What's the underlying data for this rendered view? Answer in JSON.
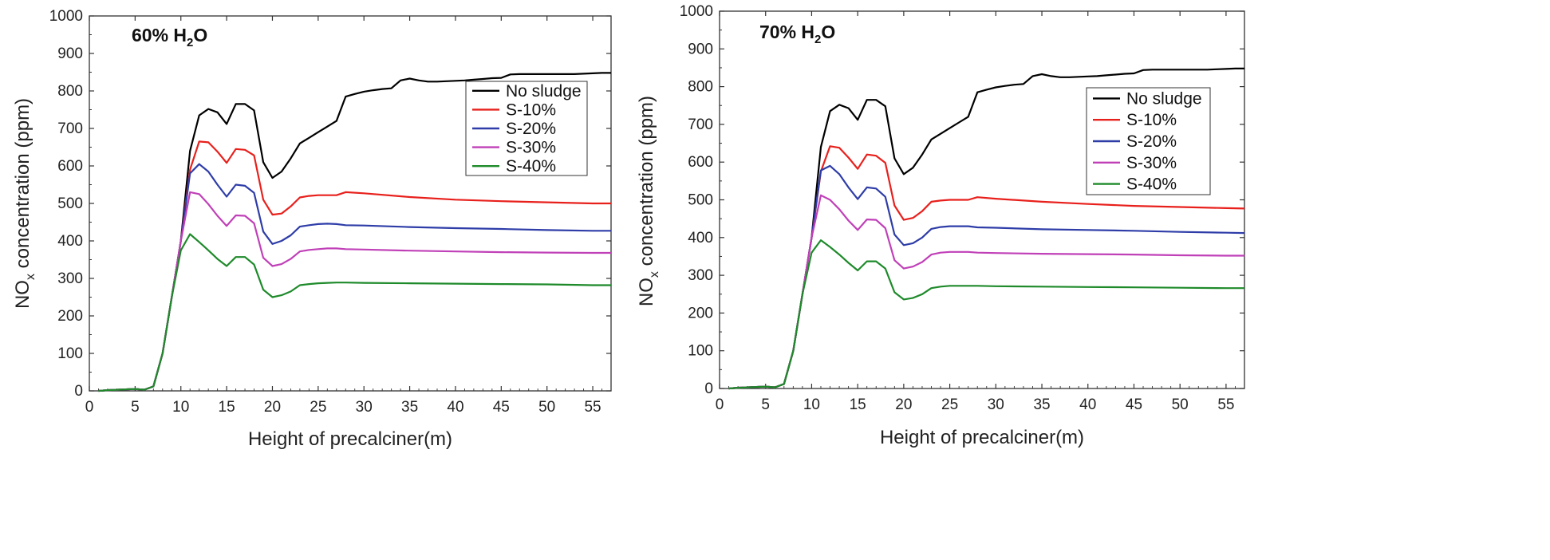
{
  "chart_data": [
    {
      "type": "line",
      "annotation": {
        "prefix": "60% H",
        "sub": "2",
        "suffix": "O"
      },
      "xlabel": "Height of precalciner(m)",
      "ylabel": {
        "prefix": "NO",
        "sub": "x",
        "suffix": " concentration (ppm)"
      },
      "xlim": [
        0,
        57
      ],
      "ylim": [
        0,
        1000
      ],
      "xticks": [
        0,
        5,
        10,
        15,
        20,
        25,
        30,
        35,
        40,
        45,
        50,
        55
      ],
      "yticks": [
        0,
        100,
        200,
        300,
        400,
        500,
        600,
        700,
        800,
        900,
        1000
      ],
      "legend_position": "top-right",
      "series": [
        {
          "name": "No sludge",
          "color": "#000000",
          "x": [
            1,
            2,
            3,
            4,
            5,
            6,
            7,
            8,
            9,
            10,
            11,
            12,
            13,
            14,
            15,
            16,
            17,
            18,
            19,
            20,
            21,
            22,
            23,
            24,
            25,
            26,
            27,
            28,
            29,
            30,
            31,
            32,
            33,
            34,
            35,
            36,
            37,
            38,
            39,
            40,
            41,
            42,
            43,
            44,
            45,
            46,
            47,
            48,
            49,
            50,
            51,
            52,
            53,
            54,
            55,
            56,
            57
          ],
          "y": [
            0,
            2,
            3,
            4,
            5,
            3,
            12,
            100,
            250,
            400,
            640,
            735,
            752,
            743,
            712,
            765,
            765,
            748,
            610,
            568,
            585,
            620,
            660,
            675,
            690,
            705,
            720,
            785,
            792,
            798,
            802,
            805,
            807,
            828,
            833,
            828,
            825,
            825,
            826,
            827,
            828,
            830,
            832,
            834,
            835,
            844,
            845,
            845,
            845,
            845,
            845,
            845,
            845,
            846,
            847,
            848,
            848
          ]
        },
        {
          "name": "S-10%",
          "color": "#e8201c",
          "x": [
            1,
            2,
            3,
            4,
            5,
            6,
            7,
            8,
            9,
            10,
            11,
            12,
            13,
            14,
            15,
            16,
            17,
            18,
            19,
            20,
            21,
            22,
            23,
            24,
            25,
            26,
            27,
            28,
            30,
            35,
            40,
            45,
            50,
            55,
            57
          ],
          "y": [
            0,
            2,
            3,
            4,
            5,
            3,
            12,
            100,
            250,
            400,
            590,
            665,
            663,
            638,
            608,
            645,
            643,
            628,
            510,
            470,
            473,
            492,
            516,
            520,
            522,
            522,
            522,
            530,
            527,
            517,
            510,
            506,
            503,
            500,
            500
          ]
        },
        {
          "name": "S-20%",
          "color": "#2e3da8",
          "x": [
            1,
            2,
            3,
            4,
            5,
            6,
            7,
            8,
            9,
            10,
            11,
            12,
            13,
            14,
            15,
            16,
            17,
            18,
            19,
            20,
            21,
            22,
            23,
            24,
            25,
            26,
            27,
            28,
            30,
            35,
            40,
            45,
            50,
            55,
            57
          ],
          "y": [
            0,
            2,
            3,
            4,
            5,
            3,
            12,
            100,
            250,
            400,
            580,
            605,
            585,
            550,
            518,
            550,
            547,
            528,
            425,
            392,
            400,
            415,
            438,
            442,
            445,
            446,
            445,
            442,
            441,
            437,
            434,
            432,
            429,
            427,
            427
          ]
        },
        {
          "name": "S-30%",
          "color": "#c040b8",
          "x": [
            1,
            2,
            3,
            4,
            5,
            6,
            7,
            8,
            9,
            10,
            11,
            12,
            13,
            14,
            15,
            16,
            17,
            18,
            19,
            20,
            21,
            22,
            23,
            24,
            25,
            26,
            27,
            28,
            30,
            35,
            40,
            45,
            50,
            55,
            57
          ],
          "y": [
            0,
            2,
            3,
            4,
            5,
            3,
            12,
            100,
            250,
            400,
            530,
            525,
            498,
            467,
            440,
            468,
            467,
            447,
            355,
            333,
            338,
            352,
            372,
            376,
            378,
            380,
            380,
            378,
            377,
            374,
            372,
            370,
            369,
            368,
            368
          ]
        },
        {
          "name": "S-40%",
          "color": "#1e8a2a",
          "x": [
            1,
            2,
            3,
            4,
            5,
            6,
            7,
            8,
            9,
            10,
            11,
            12,
            13,
            14,
            15,
            16,
            17,
            18,
            19,
            20,
            21,
            22,
            23,
            24,
            25,
            26,
            27,
            28,
            30,
            35,
            40,
            45,
            50,
            55,
            57
          ],
          "y": [
            0,
            2,
            3,
            4,
            5,
            3,
            12,
            100,
            250,
            375,
            418,
            397,
            375,
            352,
            333,
            357,
            357,
            337,
            270,
            250,
            255,
            265,
            282,
            285,
            287,
            288,
            289,
            289,
            288,
            287,
            286,
            285,
            284,
            282,
            282
          ]
        }
      ]
    },
    {
      "type": "line",
      "annotation": {
        "prefix": "70% H",
        "sub": "2",
        "suffix": "O"
      },
      "xlabel": "Height of precalciner(m)",
      "ylabel": {
        "prefix": "NO",
        "sub": "x",
        "suffix": " concentration (ppm)"
      },
      "xlim": [
        0,
        57
      ],
      "ylim": [
        0,
        1000
      ],
      "xticks": [
        0,
        5,
        10,
        15,
        20,
        25,
        30,
        35,
        40,
        45,
        50,
        55
      ],
      "yticks": [
        0,
        100,
        200,
        300,
        400,
        500,
        600,
        700,
        800,
        900,
        1000
      ],
      "legend_position": "top-right",
      "series": [
        {
          "name": "No sludge",
          "color": "#000000",
          "x": [
            1,
            2,
            3,
            4,
            5,
            6,
            7,
            8,
            9,
            10,
            11,
            12,
            13,
            14,
            15,
            16,
            17,
            18,
            19,
            20,
            21,
            22,
            23,
            24,
            25,
            26,
            27,
            28,
            29,
            30,
            31,
            32,
            33,
            34,
            35,
            36,
            37,
            38,
            39,
            40,
            41,
            42,
            43,
            44,
            45,
            46,
            47,
            48,
            49,
            50,
            51,
            52,
            53,
            54,
            55,
            56,
            57
          ],
          "y": [
            0,
            2,
            3,
            4,
            5,
            3,
            12,
            100,
            250,
            400,
            640,
            735,
            752,
            743,
            712,
            765,
            765,
            748,
            610,
            568,
            585,
            620,
            660,
            675,
            690,
            705,
            720,
            785,
            792,
            798,
            802,
            805,
            807,
            828,
            833,
            828,
            825,
            825,
            826,
            827,
            828,
            830,
            832,
            834,
            835,
            844,
            845,
            845,
            845,
            845,
            845,
            845,
            845,
            846,
            847,
            848,
            848
          ]
        },
        {
          "name": "S-10%",
          "color": "#e8201c",
          "x": [
            1,
            2,
            3,
            4,
            5,
            6,
            7,
            8,
            9,
            10,
            11,
            12,
            13,
            14,
            15,
            16,
            17,
            18,
            19,
            20,
            21,
            22,
            23,
            24,
            25,
            26,
            27,
            28,
            30,
            35,
            40,
            45,
            50,
            55,
            57
          ],
          "y": [
            0,
            2,
            3,
            4,
            5,
            3,
            12,
            100,
            250,
            400,
            575,
            642,
            638,
            612,
            582,
            620,
            617,
            598,
            485,
            447,
            452,
            470,
            495,
            498,
            500,
            500,
            500,
            507,
            503,
            495,
            489,
            484,
            481,
            478,
            477
          ]
        },
        {
          "name": "S-20%",
          "color": "#2e3da8",
          "x": [
            1,
            2,
            3,
            4,
            5,
            6,
            7,
            8,
            9,
            10,
            11,
            12,
            13,
            14,
            15,
            16,
            17,
            18,
            19,
            20,
            21,
            22,
            23,
            24,
            25,
            26,
            27,
            28,
            30,
            35,
            40,
            45,
            50,
            55,
            57
          ],
          "y": [
            0,
            2,
            3,
            4,
            5,
            3,
            12,
            100,
            250,
            400,
            578,
            590,
            568,
            533,
            502,
            533,
            530,
            508,
            408,
            380,
            385,
            400,
            423,
            428,
            430,
            430,
            430,
            427,
            426,
            422,
            420,
            418,
            415,
            413,
            412
          ]
        },
        {
          "name": "S-30%",
          "color": "#c040b8",
          "x": [
            1,
            2,
            3,
            4,
            5,
            6,
            7,
            8,
            9,
            10,
            11,
            12,
            13,
            14,
            15,
            16,
            17,
            18,
            19,
            20,
            21,
            22,
            23,
            24,
            25,
            26,
            27,
            28,
            30,
            35,
            40,
            45,
            50,
            55,
            57
          ],
          "y": [
            0,
            2,
            3,
            4,
            5,
            3,
            12,
            100,
            250,
            400,
            512,
            500,
            475,
            445,
            420,
            448,
            447,
            425,
            340,
            318,
            323,
            335,
            355,
            360,
            362,
            362,
            362,
            360,
            359,
            357,
            356,
            355,
            353,
            352,
            352
          ]
        },
        {
          "name": "S-40%",
          "color": "#1e8a2a",
          "x": [
            1,
            2,
            3,
            4,
            5,
            6,
            7,
            8,
            9,
            10,
            11,
            12,
            13,
            14,
            15,
            16,
            17,
            18,
            19,
            20,
            21,
            22,
            23,
            24,
            25,
            26,
            27,
            28,
            30,
            35,
            40,
            45,
            50,
            55,
            57
          ],
          "y": [
            0,
            2,
            3,
            4,
            5,
            3,
            12,
            100,
            250,
            360,
            393,
            375,
            355,
            333,
            313,
            337,
            337,
            318,
            255,
            236,
            240,
            250,
            266,
            270,
            272,
            272,
            272,
            272,
            271,
            270,
            269,
            268,
            267,
            266,
            266
          ]
        }
      ]
    }
  ]
}
